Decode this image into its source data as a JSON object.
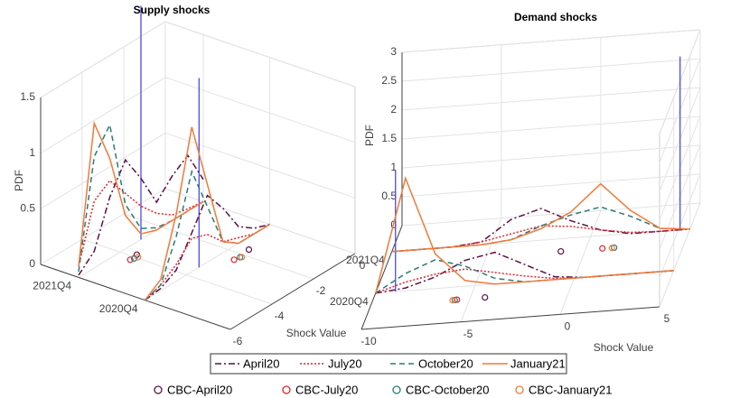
{
  "legend": {
    "lines": [
      {
        "name": "April20",
        "color": "#5c0f45",
        "dash": "7 3 2 3"
      },
      {
        "name": "July20",
        "color": "#e3232b",
        "dash": "2 2"
      },
      {
        "name": "October20",
        "color": "#2b7b78",
        "dash": "6 4"
      },
      {
        "name": "January21",
        "color": "#f07a3a",
        "dash": ""
      }
    ],
    "markers": [
      {
        "name": "CBC-April20",
        "color": "#5c0f45"
      },
      {
        "name": "CBC-July20",
        "color": "#e3232b"
      },
      {
        "name": "CBC-October20",
        "color": "#2b7b78"
      },
      {
        "name": "CBC-January21",
        "color": "#f07a3a"
      }
    ]
  },
  "chart_data": [
    {
      "type": "line3d",
      "title": "Supply shocks",
      "x_label": "Shock Value",
      "z_label": "PDF",
      "xlim": [
        -6,
        0
      ],
      "xticks": [
        -6,
        -4,
        -2,
        0
      ],
      "zlim": [
        0,
        1.5
      ],
      "zticks": [
        0,
        0.5,
        1,
        1.5
      ],
      "times": [
        "2020Q4",
        "2021Q4"
      ],
      "x": [
        -6,
        -5.25,
        -4.5,
        -3.75,
        -3,
        -2.25,
        -1.5,
        -0.75,
        0
      ],
      "series": [
        {
          "values": [
            [
              0,
              0.02,
              0.1,
              0.35,
              0.6,
              0.4,
              0.15,
              0.05,
              0
            ],
            [
              0.02,
              0.15,
              0.55,
              0.8,
              0.55,
              0.25,
              0.4,
              0.5,
              0.2
            ]
          ]
        },
        {
          "values": [
            [
              0,
              0.05,
              0.15,
              0.3,
              0.25,
              0.1,
              0.05,
              0,
              0
            ],
            [
              0.1,
              0.6,
              0.7,
              0.5,
              0.3,
              0.15,
              0.05,
              0.02,
              0
            ]
          ]
        },
        {
          "values": [
            [
              0,
              0.05,
              0.4,
              0.9,
              0.5,
              0.1,
              0,
              0,
              0
            ],
            [
              0.05,
              1.0,
              1.2,
              0.4,
              0.1,
              0.02,
              0,
              0,
              0
            ]
          ]
        },
        {
          "values": [
            [
              0,
              0.1,
              0.6,
              1.3,
              0.7,
              0.1,
              0,
              0,
              0
            ],
            [
              0.1,
              1.3,
              0.9,
              0.3,
              0.05,
              0,
              0,
              0,
              0
            ]
          ]
        }
      ],
      "cbc": [
        [
          -1.0,
          -3.2
        ],
        [
          -1.8,
          -3.6
        ],
        [
          -1.6,
          -3.5
        ],
        [
          -1.6,
          -3.4
        ]
      ],
      "realized_x": [
        -3.4,
        -3.0
      ],
      "realized_pdf": [
        1.7,
        2.1
      ]
    },
    {
      "type": "line3d",
      "title": "Demand shocks",
      "x_label": "Shock Value",
      "z_label": "PDF",
      "xlim": [
        -10,
        5
      ],
      "xticks": [
        -10,
        -5,
        0,
        5
      ],
      "zlim": [
        0,
        3
      ],
      "zticks": [
        0,
        0.5,
        1,
        1.5,
        2,
        2.5,
        3
      ],
      "times": [
        "2020Q4",
        "2021Q4"
      ],
      "x": [
        -10,
        -8.5,
        -7,
        -5.5,
        -4,
        -2.5,
        -1,
        0.5,
        2,
        3.5,
        5
      ],
      "series": [
        {
          "values": [
            [
              0,
              0.05,
              0.2,
              0.45,
              0.55,
              0.3,
              0.05,
              0,
              0,
              0,
              0
            ],
            [
              0,
              0,
              0,
              0.05,
              0.4,
              0.55,
              0.3,
              0.1,
              0,
              0,
              0
            ]
          ]
        },
        {
          "values": [
            [
              0,
              0.15,
              0.25,
              0.3,
              0.2,
              0.1,
              0.02,
              0,
              0,
              0,
              0
            ],
            [
              0,
              0,
              0,
              0.05,
              0.15,
              0.25,
              0.2,
              0.1,
              0.02,
              0,
              0
            ]
          ]
        },
        {
          "values": [
            [
              0,
              0.3,
              0.5,
              0.35,
              0.1,
              0,
              0,
              0,
              0,
              0,
              0
            ],
            [
              0,
              0,
              0,
              0,
              0.05,
              0.25,
              0.4,
              0.5,
              0.3,
              0.05,
              0
            ]
          ]
        },
        {
          "values": [
            [
              0,
              1.95,
              0.6,
              0.1,
              0,
              0,
              0,
              0,
              0,
              0,
              0
            ],
            [
              0,
              0,
              0,
              0,
              0.05,
              0.2,
              0.45,
              0.9,
              0.4,
              0.05,
              0
            ]
          ]
        }
      ],
      "cbc": [
        [
          -4.5,
          -1.5
        ],
        [
          -6.0,
          0.5
        ],
        [
          -6.2,
          1.0
        ],
        [
          -6.4,
          0.8
        ]
      ],
      "realized_x": [
        -9.0,
        4.5
      ],
      "realized_pdf": [
        2.1,
        3.0
      ]
    }
  ]
}
